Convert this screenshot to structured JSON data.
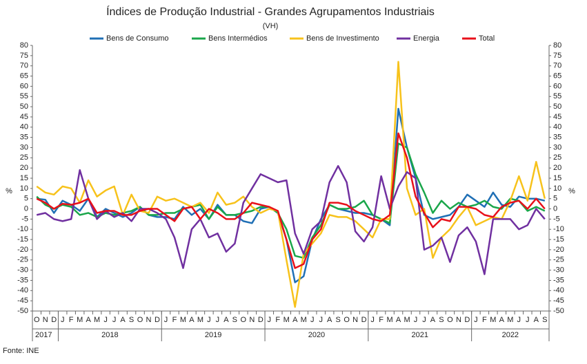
{
  "chart_data": {
    "type": "line",
    "title": "Índices de Produção Industrial - Grandes Agrupamentos Industriais",
    "subtitle": "(VH)",
    "y_label": "%",
    "y2_label": "%",
    "source": "Fonte: INE",
    "categories": [
      "O",
      "N",
      "D",
      "J",
      "F",
      "M",
      "A",
      "M",
      "J",
      "J",
      "A",
      "S",
      "O",
      "N",
      "D",
      "J",
      "F",
      "M",
      "A",
      "M",
      "J",
      "J",
      "A",
      "S",
      "O",
      "N",
      "D",
      "J",
      "F",
      "M",
      "A",
      "M",
      "J",
      "J",
      "A",
      "S",
      "O",
      "N",
      "D",
      "J",
      "F",
      "M",
      "A",
      "M",
      "J",
      "J",
      "A",
      "S",
      "O",
      "N",
      "D",
      "J",
      "F",
      "M",
      "A",
      "M",
      "J",
      "J",
      "A",
      "S"
    ],
    "years": [
      "2017",
      "2018",
      "2019",
      "2020",
      "2021",
      "2022"
    ],
    "ylim": [
      -50,
      80
    ],
    "yticks": [
      -50,
      -45,
      -40,
      -35,
      -30,
      -25,
      -20,
      -15,
      -10,
      -5,
      0,
      5,
      10,
      15,
      20,
      25,
      30,
      35,
      40,
      45,
      50,
      55,
      60,
      65,
      70,
      75,
      80
    ],
    "y2lim": [
      -50,
      80
    ],
    "y2ticks": [
      -50,
      -45,
      -40,
      -35,
      -30,
      -25,
      -20,
      -15,
      -10,
      -5,
      0,
      5,
      10,
      15,
      20,
      25,
      30,
      35,
      40,
      45,
      50,
      55,
      60,
      65,
      70,
      75,
      80
    ],
    "legend": "top",
    "series": [
      {
        "name": "Bens de Consumo",
        "color": "#1f6fb5",
        "values": [
          5,
          4.5,
          -2,
          4,
          2,
          -1,
          5,
          -4,
          0,
          -2,
          -4,
          -2,
          1,
          -3,
          -4,
          -4,
          -5,
          1,
          -3,
          0,
          -5,
          2,
          -3,
          -3,
          -6,
          -7,
          0,
          1,
          -2,
          -15,
          -36,
          -33,
          -15,
          -5,
          2,
          0,
          -1,
          -2,
          -2,
          -3,
          -5,
          -8,
          49,
          30,
          15,
          -3,
          -5,
          -4,
          -3,
          1,
          7,
          4,
          1,
          8,
          2,
          1,
          6,
          5,
          5,
          4
        ]
      },
      {
        "name": "Bens Intermédios",
        "color": "#1aa64a",
        "values": [
          6,
          2,
          0,
          2,
          1,
          -3,
          -2,
          -4,
          -2,
          -3,
          -2,
          -1,
          1,
          -3,
          -3,
          -2,
          -2,
          0,
          1,
          2,
          -5,
          1,
          -3,
          -3,
          -2,
          -1,
          1,
          1,
          -2,
          -10,
          -23,
          -24,
          -14,
          -8,
          2,
          0,
          0,
          1,
          4,
          -3,
          -5,
          -7,
          32,
          30,
          17,
          8,
          -2,
          4,
          0,
          3,
          1,
          2,
          4,
          1,
          0,
          5,
          4,
          -1,
          1,
          -1
        ]
      },
      {
        "name": "Bens de Investimento",
        "color": "#f7c21b",
        "values": [
          11,
          8,
          7,
          11,
          10,
          3,
          14,
          6,
          9,
          11,
          -3,
          7,
          -1,
          -2,
          6,
          4,
          5,
          3,
          1,
          3,
          -2,
          8,
          2,
          3,
          6,
          1,
          -2,
          0,
          -1,
          -25,
          -48,
          -22,
          -17,
          -12,
          -3,
          -4,
          -4,
          -6,
          -10,
          -14,
          -5,
          -5,
          72,
          10,
          -3,
          0,
          -24,
          -14,
          -10,
          -4,
          1,
          -8,
          -6,
          -4,
          -5,
          4,
          16,
          4,
          23,
          5
        ]
      },
      {
        "name": "Energia",
        "color": "#7030a0",
        "values": [
          -3,
          -2,
          -5,
          -6,
          -5,
          19,
          5,
          -5,
          -1,
          -4,
          -2,
          -6,
          0,
          0,
          -2,
          -5,
          -14,
          -29,
          -10,
          -5,
          -14,
          -12,
          -21,
          -17,
          3,
          10,
          17,
          15,
          13,
          14,
          -12,
          -22,
          -10,
          -6,
          13,
          21,
          13,
          -11,
          -16,
          -9,
          16,
          0,
          11,
          18,
          15,
          -20,
          -18,
          -14,
          -26,
          -13,
          -9,
          -16,
          -32,
          -5,
          -5,
          -5,
          -10,
          -8,
          0,
          -5
        ]
      },
      {
        "name": "Total",
        "color": "#e8101a",
        "values": [
          5,
          3,
          0,
          2.5,
          2,
          3,
          5,
          -2,
          -1,
          -1,
          -3,
          -3,
          -1,
          0,
          0,
          -3,
          -6,
          0,
          1,
          -5,
          0,
          -2,
          -5,
          -5,
          -2,
          3,
          2,
          1,
          -1,
          -15,
          -29,
          -27,
          -15,
          -10,
          3,
          3,
          2,
          -1,
          -3,
          -5,
          -6,
          -3,
          37,
          25,
          6,
          -2,
          -9,
          -5,
          -6,
          1,
          1,
          0,
          -3,
          -4,
          1,
          3,
          4,
          0,
          5,
          0
        ]
      }
    ]
  }
}
